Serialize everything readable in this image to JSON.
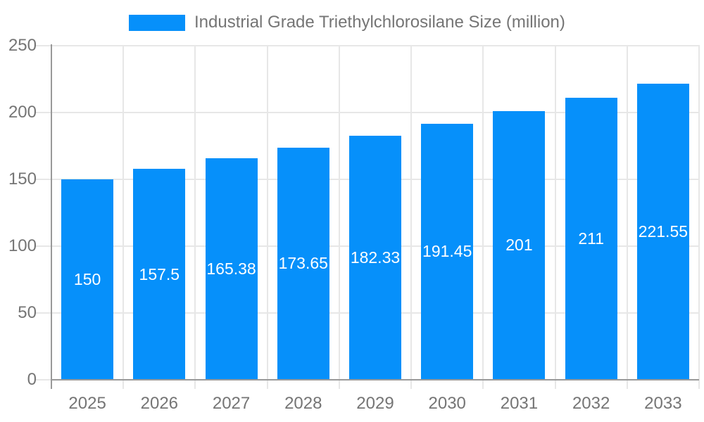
{
  "chart_data": {
    "type": "bar",
    "title": "Industrial Grade Triethylchlorosilane Size (million)",
    "categories": [
      "2025",
      "2026",
      "2027",
      "2028",
      "2029",
      "2030",
      "2031",
      "2032",
      "2033"
    ],
    "values": [
      150,
      157.5,
      165.38,
      173.65,
      182.33,
      191.45,
      201,
      211,
      221.55
    ],
    "value_labels": [
      "150",
      "157.5",
      "165.38",
      "173.65",
      "182.33",
      "191.45",
      "201",
      "211",
      "221.55"
    ],
    "xlabel": "",
    "ylabel": "",
    "ylim": [
      0,
      250
    ],
    "yticks": [
      0,
      50,
      100,
      150,
      200,
      250
    ],
    "grid": true,
    "legend_position": "top",
    "colors": {
      "bar": "#0690fa",
      "axis": "#999999",
      "gridline": "#e7e7e7",
      "tick_text": "#757575",
      "value_text": "#ffffff",
      "background": "#ffffff"
    }
  }
}
